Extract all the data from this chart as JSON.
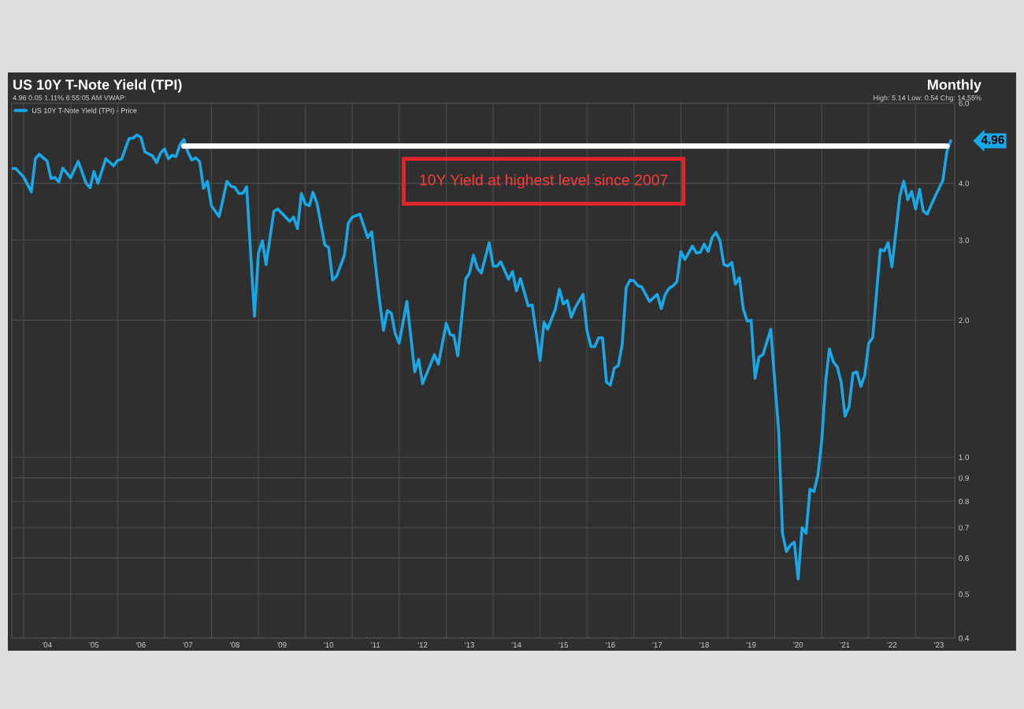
{
  "chart_data": {
    "type": "line",
    "title": "US 10Y T-Note Yield (TPI)",
    "subtitle": "4.96 0.05 1.11% 6:55:05 AM VWAP:",
    "annotations": [
      "Monthly",
      "High: 5.14 Low: 0.54 Chg: 14.55%",
      "10Y Yield at highest level since 2007",
      {
        "text": "4.96",
        "x": "2023-10",
        "y": 4.96
      }
    ],
    "series": [
      {
        "name": "US 10Y T-Note Yield (TPI) - Price",
        "color": "#1ba7e6",
        "x": [
          "2003-10",
          "2003-11",
          "2004-01",
          "2004-03",
          "2004-04",
          "2004-05",
          "2004-07",
          "2004-08",
          "2004-09",
          "2004-10",
          "2004-11",
          "2005-01",
          "2005-03",
          "2005-05",
          "2005-06",
          "2005-07",
          "2005-08",
          "2005-10",
          "2005-12",
          "2006-01",
          "2006-02",
          "2006-04",
          "2006-05",
          "2006-06",
          "2006-07",
          "2006-08",
          "2006-10",
          "2006-11",
          "2006-12",
          "2007-01",
          "2007-02",
          "2007-03",
          "2007-04",
          "2007-05",
          "2007-06",
          "2007-07",
          "2007-08",
          "2007-09",
          "2007-10",
          "2007-11",
          "2007-12",
          "2008-01",
          "2008-03",
          "2008-05",
          "2008-06",
          "2008-07",
          "2008-08",
          "2008-09",
          "2008-10",
          "2008-12",
          "2009-01",
          "2009-02",
          "2009-03",
          "2009-05",
          "2009-06",
          "2009-07",
          "2009-09",
          "2009-10",
          "2009-11",
          "2009-12",
          "2010-01",
          "2010-02",
          "2010-03",
          "2010-04",
          "2010-06",
          "2010-07",
          "2010-08",
          "2010-09",
          "2010-11",
          "2010-12",
          "2011-01",
          "2011-03",
          "2011-05",
          "2011-06",
          "2011-08",
          "2011-09",
          "2011-10",
          "2011-11",
          "2011-12",
          "2012-01",
          "2012-03",
          "2012-05",
          "2012-06",
          "2012-07",
          "2012-09",
          "2012-10",
          "2012-11",
          "2013-01",
          "2013-02",
          "2013-03",
          "2013-04",
          "2013-06",
          "2013-07",
          "2013-08",
          "2013-09",
          "2013-10",
          "2013-12",
          "2014-01",
          "2014-02",
          "2014-03",
          "2014-05",
          "2014-06",
          "2014-07",
          "2014-08",
          "2014-10",
          "2014-11",
          "2015-01",
          "2015-02",
          "2015-03",
          "2015-05",
          "2015-06",
          "2015-07",
          "2015-08",
          "2015-09",
          "2015-10",
          "2015-12",
          "2016-01",
          "2016-02",
          "2016-03",
          "2016-04",
          "2016-05",
          "2016-06",
          "2016-07",
          "2016-08",
          "2016-09",
          "2016-10",
          "2016-11",
          "2016-12",
          "2017-01",
          "2017-02",
          "2017-03",
          "2017-05",
          "2017-06",
          "2017-07",
          "2017-08",
          "2017-09",
          "2017-10",
          "2017-11",
          "2017-12",
          "2018-01",
          "2018-02",
          "2018-04",
          "2018-05",
          "2018-06",
          "2018-07",
          "2018-08",
          "2018-09",
          "2018-10",
          "2018-11",
          "2018-12",
          "2019-01",
          "2019-02",
          "2019-03",
          "2019-04",
          "2019-05",
          "2019-06",
          "2019-07",
          "2019-08",
          "2019-09",
          "2019-10",
          "2019-12",
          "2020-01",
          "2020-02",
          "2020-03",
          "2020-04",
          "2020-05",
          "2020-06",
          "2020-07",
          "2020-08",
          "2020-09",
          "2020-10",
          "2020-11",
          "2020-12",
          "2021-01",
          "2021-02",
          "2021-03",
          "2021-04",
          "2021-05",
          "2021-06",
          "2021-07",
          "2021-08",
          "2021-09",
          "2021-10",
          "2021-11",
          "2021-12",
          "2022-01",
          "2022-02",
          "2022-04",
          "2022-05",
          "2022-06",
          "2022-07",
          "2022-09",
          "2022-10",
          "2022-11",
          "2022-12",
          "2023-01",
          "2023-02",
          "2023-03",
          "2023-04",
          "2023-06",
          "2023-08",
          "2023-09",
          "2023-10"
        ],
        "values": [
          4.31,
          4.31,
          4.13,
          3.83,
          4.53,
          4.63,
          4.48,
          4.1,
          4.12,
          4.03,
          4.32,
          4.11,
          4.47,
          4.0,
          3.91,
          4.25,
          4.0,
          4.53,
          4.37,
          4.49,
          4.52,
          5.02,
          5.03,
          5.11,
          5.05,
          4.69,
          4.59,
          4.44,
          4.66,
          4.76,
          4.53,
          4.61,
          4.58,
          4.86,
          4.99,
          4.69,
          4.5,
          4.55,
          4.47,
          3.9,
          4.04,
          3.57,
          3.38,
          4.04,
          3.94,
          3.92,
          3.8,
          3.8,
          3.93,
          2.04,
          2.81,
          2.99,
          2.65,
          3.47,
          3.51,
          3.44,
          3.3,
          3.37,
          3.18,
          3.8,
          3.6,
          3.57,
          3.82,
          3.62,
          2.93,
          2.89,
          2.45,
          2.5,
          2.78,
          3.27,
          3.37,
          3.42,
          3.04,
          3.13,
          2.21,
          1.9,
          2.1,
          2.07,
          1.87,
          1.78,
          2.2,
          1.54,
          1.64,
          1.45,
          1.6,
          1.68,
          1.6,
          1.97,
          1.86,
          1.85,
          1.67,
          2.46,
          2.54,
          2.78,
          2.6,
          2.54,
          2.96,
          2.63,
          2.63,
          2.69,
          2.46,
          2.56,
          2.32,
          2.47,
          2.15,
          2.16,
          1.63,
          1.98,
          1.91,
          2.12,
          2.34,
          2.17,
          2.21,
          2.03,
          2.13,
          2.28,
          1.9,
          1.75,
          1.75,
          1.83,
          1.83,
          1.46,
          1.44,
          1.57,
          1.59,
          1.77,
          2.36,
          2.45,
          2.44,
          2.38,
          2.37,
          2.2,
          2.24,
          2.28,
          2.12,
          2.28,
          2.35,
          2.38,
          2.43,
          2.83,
          2.72,
          2.91,
          2.81,
          2.82,
          2.94,
          2.83,
          3.04,
          3.12,
          2.99,
          2.65,
          2.63,
          2.68,
          2.4,
          2.48,
          2.12,
          1.99,
          2.0,
          1.49,
          1.66,
          1.68,
          1.91,
          1.47,
          1.14,
          0.68,
          0.62,
          0.64,
          0.65,
          0.54,
          0.7,
          0.68,
          0.85,
          0.84,
          0.91,
          1.09,
          1.47,
          1.73,
          1.62,
          1.58,
          1.46,
          1.23,
          1.29,
          1.53,
          1.54,
          1.43,
          1.51,
          1.78,
          1.83,
          2.86,
          2.84,
          2.96,
          2.62,
          3.76,
          4.04,
          3.68,
          3.84,
          3.51,
          3.88,
          3.48,
          3.42,
          3.74,
          4.06,
          4.69,
          4.96
        ]
      },
      {
        "color": "#ffffff",
        "x": [
          "2007-06",
          "2023-09"
        ],
        "values": [
          4.83,
          4.83
        ]
      }
    ],
    "log": true,
    "ylim": [
      0.4,
      6.0
    ],
    "yticks": [
      0.4,
      0.5,
      0.6,
      0.7,
      0.8,
      0.9,
      {
        "value": 1,
        "label": "1.0"
      },
      {
        "value": 2,
        "label": "2.0"
      },
      {
        "value": 3,
        "label": "3.0"
      },
      {
        "value": 4,
        "label": "4.0"
      },
      {
        "value": 6,
        "label": "6.0"
      }
    ],
    "xlim": [
      "2003-10",
      "2023-11"
    ],
    "xticks": [
      {
        "value": "2004-07",
        "label": "'04"
      },
      {
        "value": "2005-07",
        "label": "'05"
      },
      {
        "value": "2006-07",
        "label": "'06"
      },
      {
        "value": "2007-07",
        "label": "'07"
      },
      {
        "value": "2008-07",
        "label": "'08"
      },
      {
        "value": "2009-07",
        "label": "'09"
      },
      {
        "value": "2010-07",
        "label": "'10"
      },
      {
        "value": "2011-07",
        "label": "'11"
      },
      {
        "value": "2012-07",
        "label": "'12"
      },
      {
        "value": "2013-07",
        "label": "'13"
      },
      {
        "value": "2014-07",
        "label": "'14"
      },
      {
        "value": "2015-07",
        "label": "'15"
      },
      {
        "value": "2016-07",
        "label": "'16"
      },
      {
        "value": "2017-07",
        "label": "'17"
      },
      {
        "value": "2018-07",
        "label": "'18"
      },
      {
        "value": "2019-07",
        "label": "'19"
      },
      {
        "value": "2020-07",
        "label": "'20"
      },
      {
        "value": "2021-07",
        "label": "'21"
      },
      {
        "value": "2022-07",
        "label": "'22"
      },
      {
        "value": "2023-07",
        "label": "'23"
      },
      {
        "value": "2004",
        "label": null
      },
      {
        "value": "2005",
        "label": null
      },
      {
        "value": "2006",
        "label": null
      },
      {
        "value": "2007",
        "label": null
      },
      {
        "value": "2008",
        "label": null
      },
      {
        "value": "2009",
        "label": null
      },
      {
        "value": "2010",
        "label": null
      },
      {
        "value": "2011",
        "label": null
      },
      {
        "value": "2012",
        "label": null
      },
      {
        "value": "2013",
        "label": null
      },
      {
        "value": "2014",
        "label": null
      },
      {
        "value": "2015",
        "label": null
      },
      {
        "value": "2016",
        "label": null
      },
      {
        "value": "2017",
        "label": null
      },
      {
        "value": "2018",
        "label": null
      },
      {
        "value": "2019",
        "label": null
      },
      {
        "value": "2020",
        "label": null
      },
      {
        "value": "2021",
        "label": null
      },
      {
        "value": "2022",
        "label": null
      },
      {
        "value": "2023",
        "label": null
      }
    ],
    "grid": true,
    "legend": "top left",
    "marker": "none",
    "line_style": "solid"
  }
}
